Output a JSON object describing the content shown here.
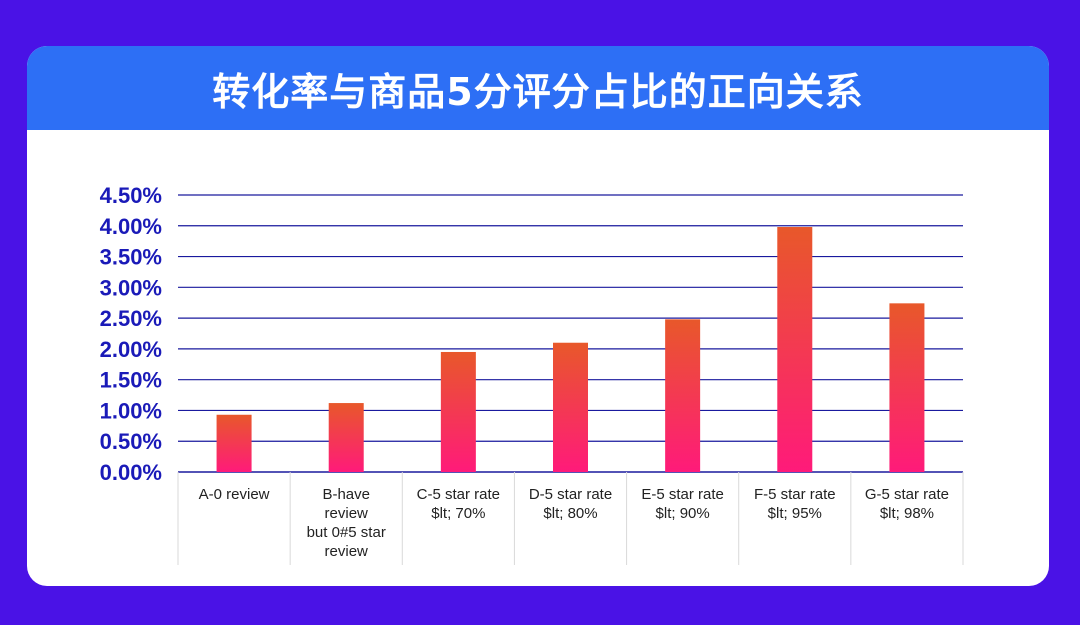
{
  "title": "转化率与商品5分评分占比的正向关系",
  "colors": {
    "background": "#4a12e6",
    "header": "#2d6ff5",
    "gridline": "#1a1a9e",
    "bar_top": "#e8582a",
    "bar_bottom": "#ff1a7a",
    "tick_text": "#1a1ab8"
  },
  "chart_data": {
    "type": "bar",
    "title": "转化率与商品5分评分占比的正向关系",
    "categories": [
      [
        "A-0 review"
      ],
      [
        "B-have",
        "review",
        "but 0#5 star",
        "review"
      ],
      [
        "C-5 star rate",
        "$lt; 70%"
      ],
      [
        "D-5 star rate",
        "$lt; 80%"
      ],
      [
        "E-5 star rate",
        "$lt; 90%"
      ],
      [
        "F-5 star rate",
        "$lt; 95%"
      ],
      [
        "G-5 star rate",
        "$lt; 98%"
      ]
    ],
    "values": [
      0.0093,
      0.0112,
      0.0195,
      0.021,
      0.0248,
      0.0398,
      0.0274
    ],
    "ylim": [
      0,
      0.045
    ],
    "yticks": [
      "0.00%",
      "0.50%",
      "1.00%",
      "1.50%",
      "2.00%",
      "2.50%",
      "3.00%",
      "3.50%",
      "4.00%",
      "4.50%"
    ],
    "grid": true,
    "legend": "none"
  }
}
